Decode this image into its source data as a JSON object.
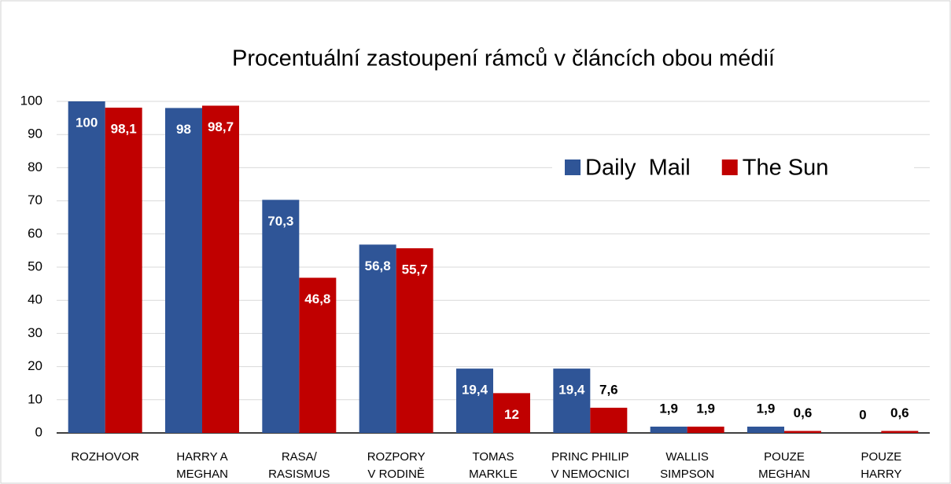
{
  "chart_data": {
    "type": "bar",
    "title": "Procentuální zastoupení rámců v článcích obou médií",
    "categories": [
      "ROZHOVOR",
      "HARRY A\nMEGHAN",
      "RASA/\nRASISMUS",
      "ROZPORY\nV RODINĚ",
      "TOMAS\nMARKLE",
      "PRINC PHILIP\nV NEMOCNICI",
      "WALLIS\nSIMPSON",
      "POUZE\nMEGHAN",
      "POUZE\nHARRY"
    ],
    "series": [
      {
        "name": "Daily  Mail",
        "color": "#2f5597",
        "values": [
          100,
          98,
          70.3,
          56.8,
          19.4,
          19.4,
          1.9,
          1.9,
          0
        ],
        "value_labels": [
          "100",
          "98",
          "70,3",
          "56,8",
          "19,4",
          "19,4",
          "1,9",
          "1,9",
          "0"
        ]
      },
      {
        "name": "The Sun",
        "color": "#c00000",
        "values": [
          98.1,
          98.7,
          46.8,
          55.7,
          12,
          7.6,
          1.9,
          0.6,
          0.6
        ],
        "value_labels": [
          "98,1",
          "98,7",
          "46,8",
          "55,7",
          "12",
          "7,6",
          "1,9",
          "0,6",
          "0,6"
        ]
      }
    ],
    "ylim": [
      0,
      100
    ],
    "yticks": [
      0,
      10,
      20,
      30,
      40,
      50,
      60,
      70,
      80,
      90,
      100
    ],
    "grid": true,
    "legend": "upper right"
  }
}
